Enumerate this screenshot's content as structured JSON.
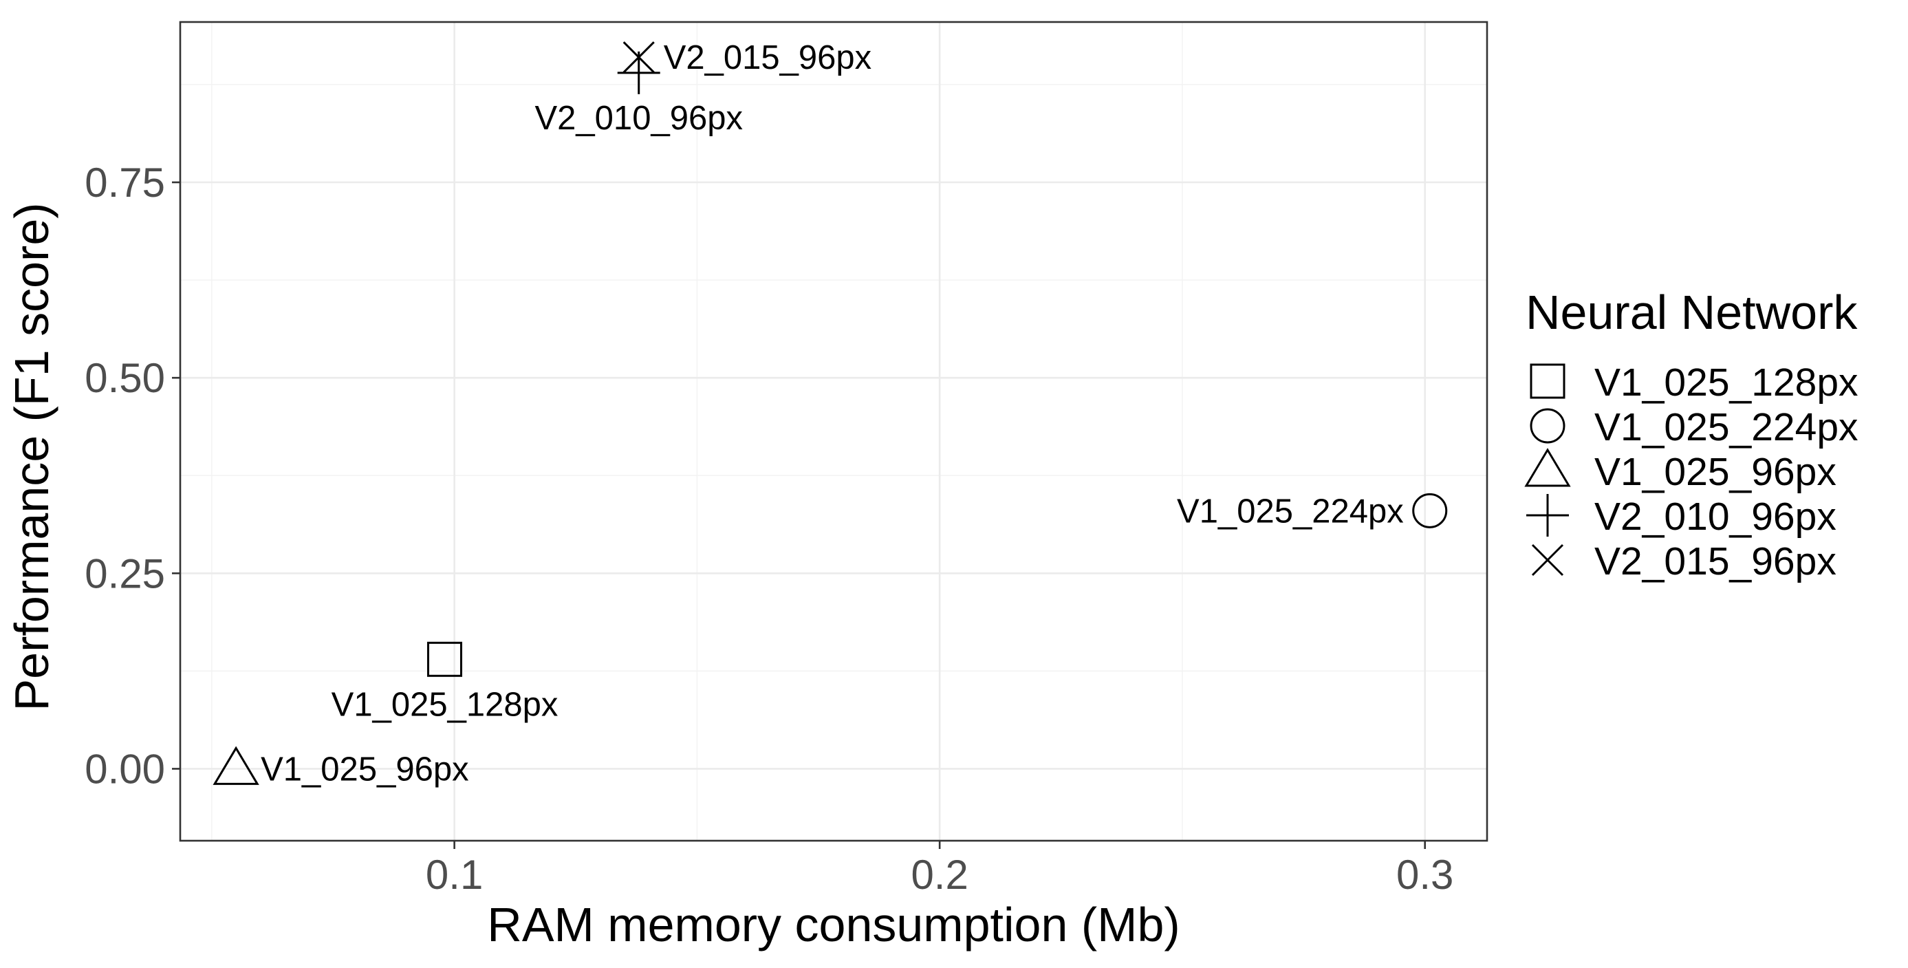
{
  "chart_data": {
    "type": "scatter",
    "xlabel": "RAM memory consumption (Mb)",
    "ylabel": "Performance (F1 score)",
    "xlim": [
      0.0435,
      0.3128
    ],
    "ylim": [
      -0.092,
      0.955
    ],
    "x_ticks": [
      0.1,
      0.2,
      0.3
    ],
    "x_tick_labels": [
      "0.1",
      "0.2",
      "0.3"
    ],
    "y_ticks": [
      0,
      0.25,
      0.5,
      0.75
    ],
    "y_tick_labels": [
      "0.00",
      "0.25",
      "0.50",
      "0.75"
    ],
    "grid": true,
    "legend": {
      "title": "Neural Network",
      "position": "right"
    },
    "series": [
      {
        "name": "V1_025_128px",
        "shape": "square",
        "x": 0.098,
        "y": 0.14,
        "label": "V1_025_128px",
        "label_position": "below"
      },
      {
        "name": "V1_025_224px",
        "shape": "circle",
        "x": 0.301,
        "y": 0.33,
        "label": "V1_025_224px",
        "label_position": "left"
      },
      {
        "name": "V1_025_96px",
        "shape": "triangle",
        "x": 0.055,
        "y": 0.0,
        "label": "V1_025_96px",
        "label_position": "right"
      },
      {
        "name": "V2_010_96px",
        "shape": "plus",
        "x": 0.138,
        "y": 0.89,
        "label": "V2_010_96px",
        "label_position": "below"
      },
      {
        "name": "V2_015_96px",
        "shape": "cross",
        "x": 0.138,
        "y": 0.91,
        "label": "V2_015_96px",
        "label_position": "right"
      }
    ]
  }
}
